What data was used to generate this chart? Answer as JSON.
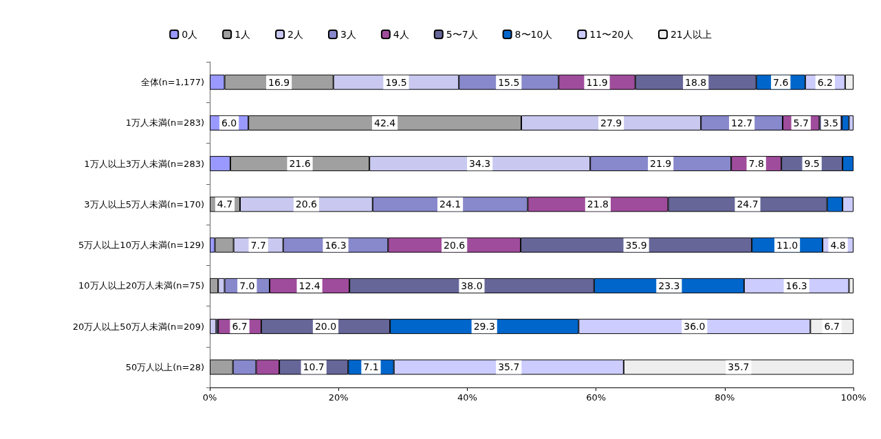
{
  "chart_data": {
    "type": "bar",
    "orientation": "horizontal",
    "stacked": true,
    "legend": "top",
    "grid": false,
    "categories": [
      "全体(n=1,177)",
      "1万人未満(n=283)",
      "1万人以上3万人未満(n=283)",
      "3万人以上5万人未満(n=170)",
      "5万人以上10万人未満(n=129)",
      "10万人以上20万人未満(n=75)",
      "20万人以上50万人未満(n=209)",
      "50万人以上(n=28)"
    ],
    "xlim": [
      0,
      100
    ],
    "xticks": [
      {
        "value": 0,
        "label": "0%"
      },
      {
        "value": 20,
        "label": "20%"
      },
      {
        "value": 40,
        "label": "40%"
      },
      {
        "value": 60,
        "label": "60%"
      },
      {
        "value": 80,
        "label": "80%"
      },
      {
        "value": 100,
        "label": "100%"
      }
    ],
    "series": [
      {
        "name": "0人",
        "color": "#9999ff",
        "values": [
          2.3,
          6.0,
          3.2,
          0,
          0.8,
          0,
          0,
          0
        ],
        "value_labels": [
          null,
          "6.0",
          null,
          null,
          null,
          null,
          null,
          null
        ]
      },
      {
        "name": "1人",
        "color": "#a0a0a0",
        "values": [
          16.9,
          42.4,
          21.6,
          4.7,
          2.9,
          1.3,
          0,
          3.6
        ],
        "value_labels": [
          "16.9",
          "42.4",
          "21.6",
          "4.7",
          null,
          null,
          null,
          null
        ]
      },
      {
        "name": "2人",
        "color": "#c8c8f0",
        "values": [
          19.5,
          27.9,
          34.3,
          20.6,
          7.7,
          1.0,
          1.0,
          0
        ],
        "value_labels": [
          "19.5",
          "27.9",
          "34.3",
          "20.6",
          "7.7",
          null,
          null,
          null
        ]
      },
      {
        "name": "3人",
        "color": "#8888cc",
        "values": [
          15.5,
          12.7,
          21.9,
          24.1,
          16.3,
          7.0,
          0.3,
          3.6
        ],
        "value_labels": [
          "15.5",
          "12.7",
          "21.9",
          "24.1",
          "16.3",
          "7.0",
          null,
          null
        ]
      },
      {
        "name": "4人",
        "color": "#a04c9c",
        "values": [
          11.9,
          5.7,
          7.8,
          21.8,
          20.6,
          12.4,
          6.7,
          3.6
        ],
        "value_labels": [
          "11.9",
          "5.7",
          "7.8",
          "21.8",
          "20.6",
          "12.4",
          "6.7",
          null
        ]
      },
      {
        "name": "5〜7人",
        "color": "#666699",
        "values": [
          18.8,
          3.5,
          9.5,
          24.7,
          35.9,
          38.0,
          20.0,
          10.7
        ],
        "value_labels": [
          "18.8",
          "3.5",
          "9.5",
          "24.7",
          "35.9",
          "38.0",
          "20.0",
          "10.7"
        ]
      },
      {
        "name": "8〜10人",
        "color": "#0066cc",
        "values": [
          7.6,
          1.1,
          1.7,
          2.4,
          11.0,
          23.3,
          29.3,
          7.1
        ],
        "value_labels": [
          "7.6",
          null,
          null,
          null,
          "11.0",
          "23.3",
          "29.3",
          "7.1"
        ]
      },
      {
        "name": "11〜20人",
        "color": "#ccccff",
        "values": [
          6.2,
          0.7,
          0,
          1.7,
          4.8,
          16.3,
          36.0,
          35.7
        ],
        "value_labels": [
          "6.2",
          null,
          null,
          null,
          "4.8",
          "16.3",
          "36.0",
          "35.7"
        ]
      },
      {
        "name": "21人以上",
        "color": "#eeeeee",
        "values": [
          1.3,
          0,
          0,
          0,
          0,
          0.7,
          6.7,
          35.7
        ],
        "value_labels": [
          null,
          null,
          null,
          null,
          null,
          null,
          "6.7",
          "35.7"
        ]
      }
    ]
  }
}
